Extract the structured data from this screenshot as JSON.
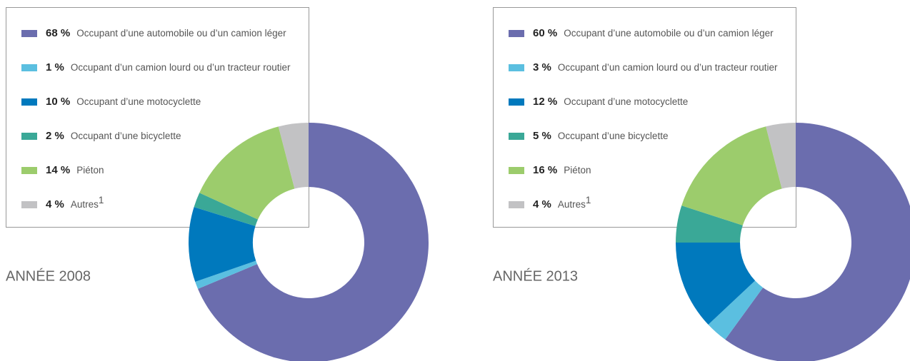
{
  "chart_data": [
    {
      "type": "donut",
      "title": "ANNÉE 2008",
      "categories": [
        "Occupant d’une automobile ou d’un camion léger",
        "Occupant d’un camion lourd ou d’un tracteur routier",
        "Occupant d’une motocyclette",
        "Occupant d’une bicyclette",
        "Piéton",
        "Autres"
      ],
      "superscripts": [
        null,
        null,
        null,
        null,
        null,
        "1"
      ],
      "values": [
        68,
        1,
        10,
        2,
        14,
        4
      ],
      "value_labels": [
        "68 %",
        "1 %",
        "10 %",
        "2 %",
        "14 %",
        "4 %"
      ],
      "colors": [
        "#6b6dae",
        "#5bbfe0",
        "#0079bd",
        "#3aa897",
        "#9ccc6c",
        "#c2c2c4"
      ]
    },
    {
      "type": "donut",
      "title": "ANNÉE 2013",
      "categories": [
        "Occupant d’une automobile ou d’un camion léger",
        "Occupant d’un camion lourd ou d’un tracteur routier",
        "Occupant d’une motocyclette",
        "Occupant d’une bicyclette",
        "Piéton",
        "Autres"
      ],
      "superscripts": [
        null,
        null,
        null,
        null,
        null,
        "1"
      ],
      "values": [
        60,
        3,
        12,
        5,
        16,
        4
      ],
      "value_labels": [
        "60 %",
        "3 %",
        "12 %",
        "5 %",
        "16 %",
        "4 %"
      ],
      "colors": [
        "#6b6dae",
        "#5bbfe0",
        "#0079bd",
        "#3aa897",
        "#9ccc6c",
        "#c2c2c4"
      ]
    }
  ]
}
